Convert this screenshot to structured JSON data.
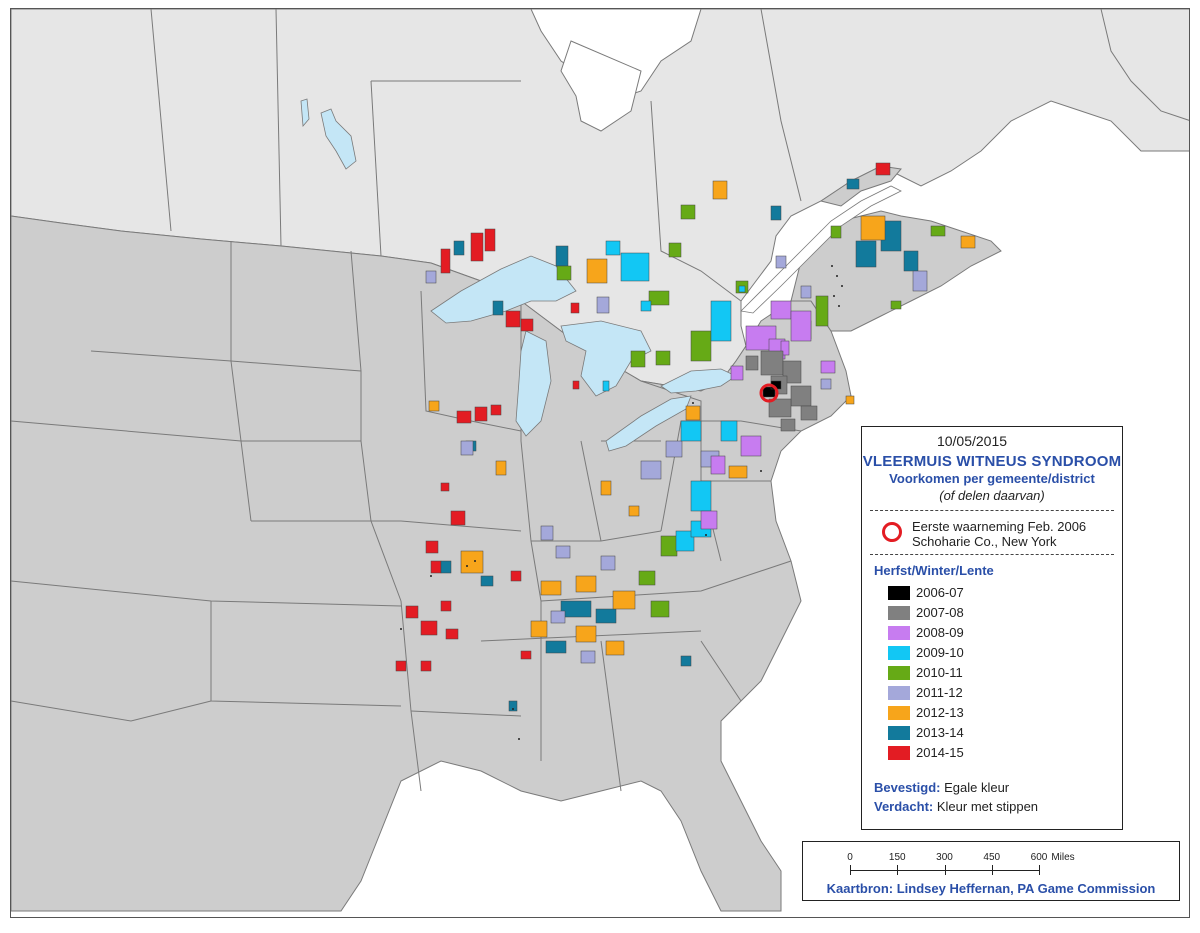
{
  "map": {
    "land_colors": {
      "canada": "#e6e6e6",
      "usa": "#cdcdcd",
      "water": "#c4e6f6",
      "border": "#7a7a7a"
    },
    "first_detection_marker_color": "#e31c23"
  },
  "legend": {
    "date": "10/05/2015",
    "title": "VLEERMUIS WITNEUS SYNDROOM",
    "subtitle": "Voorkomen per gemeente/district",
    "subtitle_note": "(of delen daarvan)",
    "first_detection_line1": "Eerste waarneming Feb. 2006",
    "first_detection_line2": "Schoharie Co., New York",
    "season_heading": "Herfst/Winter/Lente",
    "seasons": [
      {
        "label": "2006-07",
        "color": "#000000"
      },
      {
        "label": "2007-08",
        "color": "#808080"
      },
      {
        "label": "2008-09",
        "color": "#c77cf0"
      },
      {
        "label": "2009-10",
        "color": "#12c7f4"
      },
      {
        "label": "2010-11",
        "color": "#66aa16"
      },
      {
        "label": "2011-12",
        "color": "#a4a8da"
      },
      {
        "label": "2012-13",
        "color": "#f7a51b"
      },
      {
        "label": "2013-14",
        "color": "#127a9c"
      },
      {
        "label": "2014-15",
        "color": "#e31c23"
      }
    ],
    "confirmed_label": "Bevestigd:",
    "confirmed_text": "Egale kleur",
    "suspected_label": "Verdacht:",
    "suspected_text": "Kleur met stippen"
  },
  "scale": {
    "ticks": [
      "0",
      "150",
      "300",
      "450",
      "600"
    ],
    "unit": "Miles",
    "source": "Kaartbron: Lindsey Heffernan, PA Game Commission"
  }
}
